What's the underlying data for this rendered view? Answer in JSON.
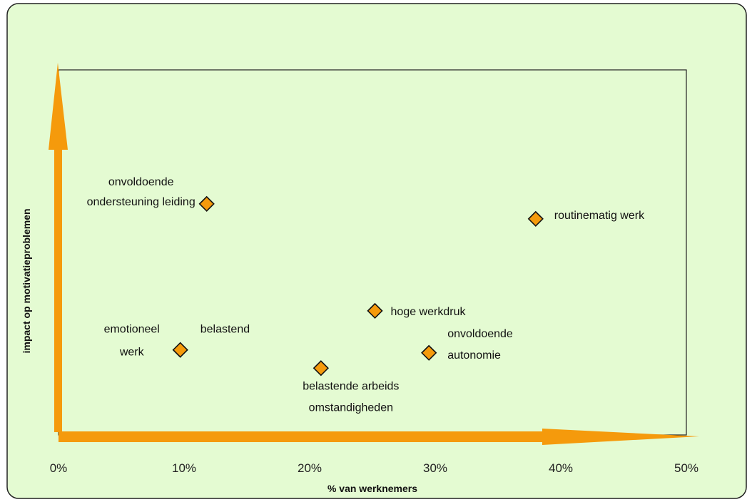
{
  "colors": {
    "background": "#e4fbd2",
    "frame": "#222222",
    "arrow": "#f59a0c",
    "marker_fill": "#f59a0c",
    "marker_stroke": "#111111"
  },
  "chart_data": {
    "type": "scatter",
    "title": "",
    "xlabel": "% van werknemers",
    "ylabel": "impact op motivatieproblemen",
    "xlim": [
      0,
      50
    ],
    "ylim": [
      0,
      10
    ],
    "x_ticks": [
      "0%",
      "10%",
      "20%",
      "30%",
      "40%",
      "50%"
    ],
    "y_ticks_shown": false,
    "grid": false,
    "legend": "none",
    "points": [
      {
        "x": 11.8,
        "y": 6.33,
        "label_lines": [
          "onvoldoende",
          "ondersteuning leiding"
        ]
      },
      {
        "x": 38.0,
        "y": 5.92,
        "label_lines": [
          "routinematig werk"
        ]
      },
      {
        "x": 25.2,
        "y": 3.4,
        "label_lines": [
          "hoge werkdruk"
        ]
      },
      {
        "x": 9.7,
        "y": 2.33,
        "label_lines": [
          "emotioneel",
          "werk"
        ],
        "label_extra": "belastend"
      },
      {
        "x": 29.5,
        "y": 2.25,
        "label_lines": [
          "onvoldoende",
          "autonomie"
        ]
      },
      {
        "x": 20.9,
        "y": 1.83,
        "label_lines": [
          "belastende arbeids",
          "omstandigheden"
        ]
      }
    ]
  }
}
